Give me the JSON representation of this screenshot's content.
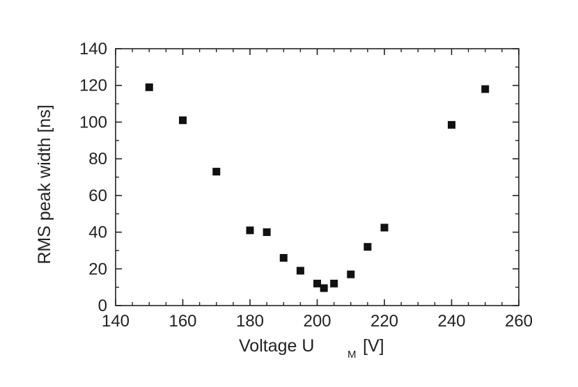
{
  "chart_data": {
    "type": "scatter",
    "title": "",
    "xlabel_main": "Voltage U",
    "xlabel_sub": "M",
    "xlabel_unit": "[V]",
    "ylabel": "RMS peak width [ns]",
    "xlim": [
      140,
      260
    ],
    "ylim": [
      0,
      140
    ],
    "x_ticks": [
      140,
      160,
      180,
      200,
      220,
      240,
      260
    ],
    "y_ticks": [
      0,
      20,
      40,
      60,
      80,
      100,
      120,
      140
    ],
    "x_minor_step": 5,
    "y_minor_step": 10,
    "grid": false,
    "marker": "square",
    "marker_color": "#111111",
    "series": [
      {
        "points": [
          {
            "x": 150,
            "y": 119
          },
          {
            "x": 160,
            "y": 101
          },
          {
            "x": 170,
            "y": 73
          },
          {
            "x": 180,
            "y": 41
          },
          {
            "x": 185,
            "y": 40
          },
          {
            "x": 190,
            "y": 26
          },
          {
            "x": 195,
            "y": 19
          },
          {
            "x": 200,
            "y": 12
          },
          {
            "x": 202,
            "y": 9.5
          },
          {
            "x": 205,
            "y": 12
          },
          {
            "x": 210,
            "y": 17
          },
          {
            "x": 215,
            "y": 32
          },
          {
            "x": 220,
            "y": 42.5
          },
          {
            "x": 240,
            "y": 98.5
          },
          {
            "x": 250,
            "y": 118
          }
        ]
      }
    ]
  }
}
